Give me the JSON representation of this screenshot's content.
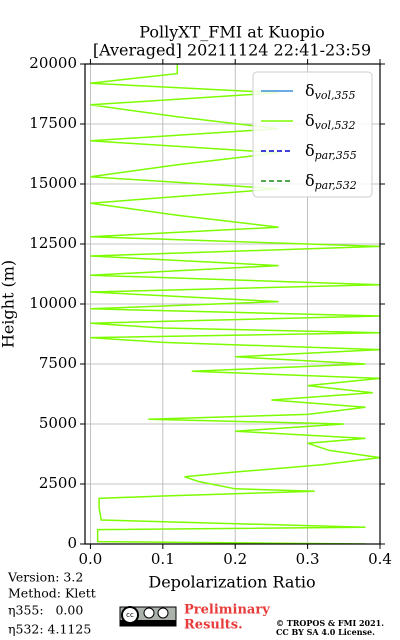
{
  "chart_data": {
    "type": "line",
    "title": "PollyXT_FMI at Kuopio",
    "subtitle": "[Averaged] 20211124 22:41-23:59",
    "x_label": "Depolarization Ratio",
    "y_label": "Height (m)",
    "xlim": [
      -0.0075,
      0.4
    ],
    "ylim": [
      0,
      20000
    ],
    "xticks": [
      {
        "value": 0,
        "label": "0.0"
      },
      0.1,
      0.2,
      0.3,
      0.4
    ],
    "yticks": [
      0,
      2500,
      5000,
      7500,
      10000,
      12500,
      15000,
      17500,
      20000
    ],
    "grid": true,
    "legend": "upper right",
    "heights": [
      0,
      100,
      500,
      600,
      700,
      1000,
      1500,
      1900,
      2000,
      2200,
      2300,
      2600,
      2800,
      3000,
      3300,
      3600,
      3900,
      4200,
      4400,
      4700,
      5000,
      5200,
      5400,
      5700,
      6000,
      6300,
      6600,
      6900,
      7200,
      7500,
      7800,
      8100,
      8400,
      8600,
      8800,
      9000,
      9200,
      9500,
      9800,
      10100,
      10500,
      10800,
      11200,
      11600,
      12000,
      12400,
      12800,
      13200,
      13700,
      14200,
      14800,
      15300,
      15800,
      16300,
      16800,
      17300,
      17800,
      18300,
      18800,
      19200,
      19600,
      20000
    ],
    "series": [
      {
        "name": "δvol,355",
        "color": "#3a8fd9",
        "dashed": false,
        "values": [
          null,
          null,
          null,
          null,
          null,
          null,
          null,
          null,
          null,
          null,
          null,
          null,
          null,
          null,
          null,
          null,
          null,
          null,
          null,
          null,
          null,
          null,
          null,
          null,
          null,
          null,
          null,
          null,
          null,
          null,
          null,
          null,
          null,
          null,
          null,
          null,
          null,
          null,
          null,
          null,
          null,
          null,
          null,
          null,
          null,
          null,
          null,
          null,
          null,
          null,
          null,
          null,
          null,
          null,
          null,
          null,
          null,
          null,
          null,
          null,
          null,
          null
        ]
      },
      {
        "name": "δvol,532",
        "color": "#7cfc00",
        "dashed": false,
        "values": [
          0.38,
          0.01,
          0.01,
          0.01,
          0.38,
          0.015,
          0.012,
          0.012,
          0.1,
          0.31,
          0.2,
          0.15,
          0.13,
          0.2,
          0.32,
          0.4,
          0.33,
          0.3,
          0.38,
          0.2,
          0.35,
          0.08,
          0.3,
          0.38,
          0.25,
          0.39,
          0.3,
          0.4,
          0.14,
          0.38,
          0.2,
          0.4,
          0.1,
          0.0,
          0.4,
          0.1,
          0.0,
          0.4,
          0.0,
          0.26,
          0.0,
          0.4,
          0.0,
          0.26,
          0.0,
          0.4,
          0.0,
          0.26,
          0.12,
          0.0,
          0.26,
          0.0,
          0.12,
          0.26,
          0.0,
          0.26,
          0.12,
          0.0,
          0.26,
          0.0,
          0.12,
          0.12
        ]
      },
      {
        "name": "δpar,355",
        "color": "#0000cd",
        "dashed": true,
        "values": [
          null,
          null,
          null,
          null,
          null,
          null,
          null,
          null,
          null,
          null,
          null,
          null,
          null,
          null,
          null,
          null,
          null,
          null,
          null,
          null,
          null,
          null,
          null,
          null,
          null,
          null,
          null,
          null,
          null,
          null,
          null,
          null,
          null,
          null,
          null,
          null,
          null,
          null,
          null,
          null,
          null,
          null,
          null,
          null,
          null,
          null,
          null,
          null,
          null,
          null,
          null,
          null,
          null,
          null,
          null,
          null,
          null,
          null,
          null,
          null,
          null,
          null
        ]
      },
      {
        "name": "δpar,532",
        "color": "#1a8c1a",
        "dashed": true,
        "values": [
          null,
          null,
          null,
          null,
          null,
          null,
          null,
          null,
          null,
          null,
          null,
          null,
          null,
          null,
          null,
          null,
          null,
          null,
          null,
          null,
          null,
          null,
          null,
          null,
          null,
          null,
          null,
          null,
          null,
          null,
          null,
          null,
          null,
          null,
          null,
          null,
          null,
          null,
          null,
          null,
          null,
          null,
          null,
          null,
          null,
          null,
          null,
          null,
          null,
          null,
          null,
          null,
          null,
          null,
          null,
          null,
          null,
          null,
          null,
          null,
          null,
          null
        ]
      }
    ]
  },
  "footer": {
    "version": "Version: 3.2",
    "method": "Method: Klett",
    "eta355": "η355:   0.00",
    "eta532": "η532: 4.1125",
    "preliminary": [
      "Preliminary",
      "Results."
    ],
    "copyright": [
      "© TROPOS & FMI 2021.",
      "CC BY SA 4.0 License."
    ]
  }
}
